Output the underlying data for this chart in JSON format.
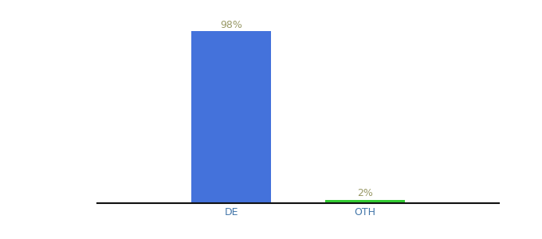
{
  "categories": [
    "DE",
    "OTH"
  ],
  "values": [
    98,
    2
  ],
  "bar_colors": [
    "#4472db",
    "#33cc33"
  ],
  "label_texts": [
    "98%",
    "2%"
  ],
  "label_color": "#999966",
  "background_color": "#ffffff",
  "axis_line_color": "#111111",
  "ylim": [
    0,
    105
  ],
  "bar_width": 0.6,
  "tick_fontsize": 9,
  "label_fontsize": 9,
  "xlabel_color": "#4477aa"
}
